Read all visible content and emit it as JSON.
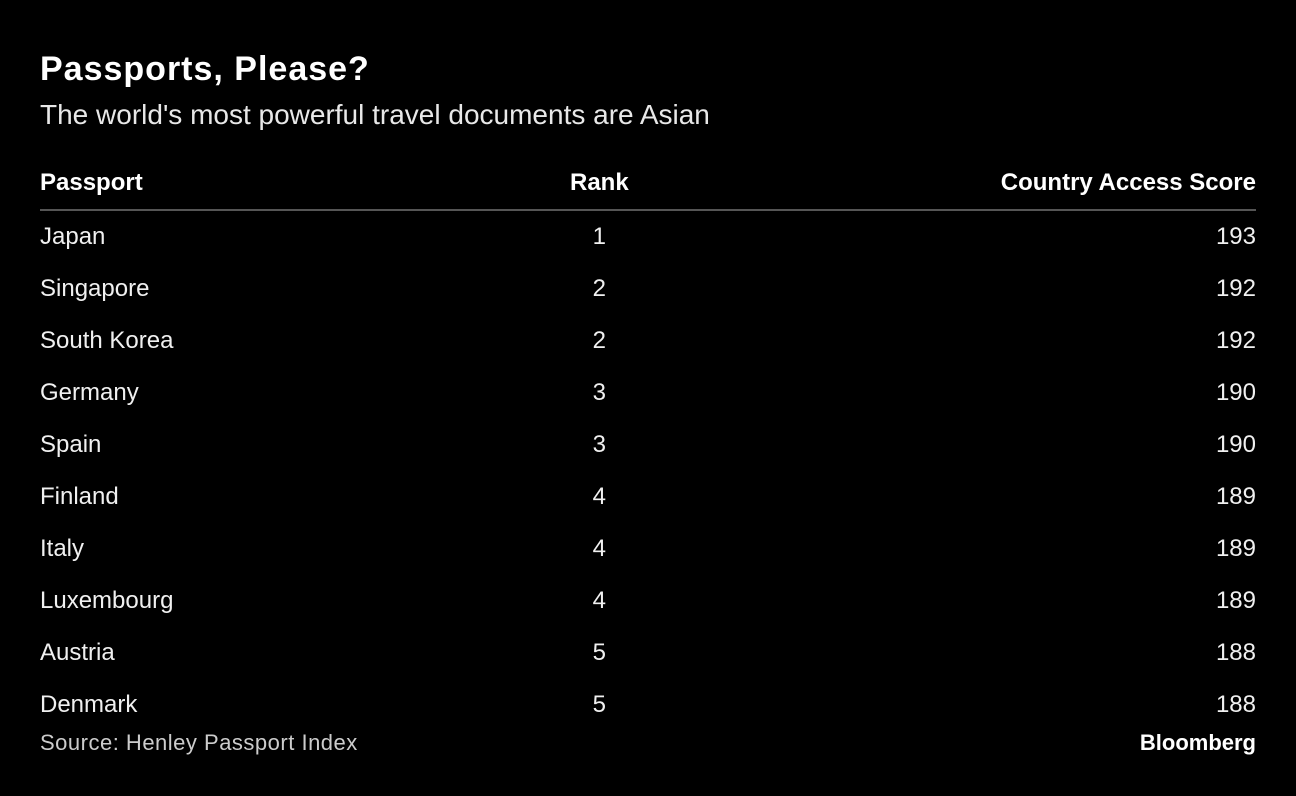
{
  "title": "Passports,  Please?",
  "subtitle": "The world's most powerful travel documents are Asian",
  "table": {
    "type": "table",
    "columns": [
      {
        "key": "passport",
        "label": "Passport",
        "align": "left",
        "width_pct": 40
      },
      {
        "key": "rank",
        "label": "Rank",
        "align": "center",
        "width_pct": 12
      },
      {
        "key": "score",
        "label": "Country Access Score",
        "align": "right",
        "width_pct": 48
      }
    ],
    "rows": [
      {
        "passport": "Japan",
        "rank": "1",
        "score": "193"
      },
      {
        "passport": "Singapore",
        "rank": "2",
        "score": "192"
      },
      {
        "passport": "South Korea",
        "rank": "2",
        "score": "192"
      },
      {
        "passport": "Germany",
        "rank": "3",
        "score": "190"
      },
      {
        "passport": "Spain",
        "rank": "3",
        "score": "190"
      },
      {
        "passport": "Finland",
        "rank": "4",
        "score": "189"
      },
      {
        "passport": "Italy",
        "rank": "4",
        "score": "189"
      },
      {
        "passport": "Luxembourg",
        "rank": "4",
        "score": "189"
      },
      {
        "passport": "Austria",
        "rank": "5",
        "score": "188"
      },
      {
        "passport": "Denmark",
        "rank": "5",
        "score": "188"
      }
    ],
    "header_border_color": "#555555",
    "header_fontsize": 24,
    "header_fontweight": 700,
    "cell_fontsize": 24,
    "cell_fontweight": 400,
    "text_color": "#f0f0f0"
  },
  "source": "Source:  Henley Passport Index",
  "brand": "Bloomberg",
  "background_color": "#000000",
  "title_fontsize": 34,
  "subtitle_fontsize": 28,
  "title_color": "#ffffff",
  "subtitle_color": "#e8e8e8"
}
